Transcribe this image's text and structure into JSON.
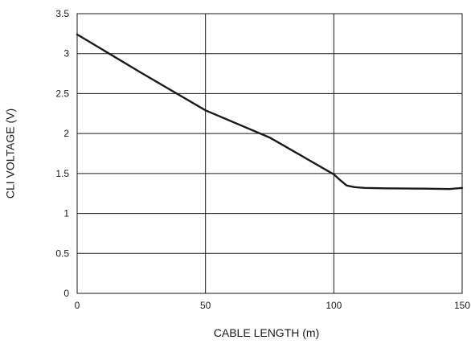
{
  "chart_data": {
    "type": "line",
    "title": "",
    "xlabel": "CABLE LENGTH (m)",
    "ylabel": "CLI VOLTAGE (V)",
    "xlim": [
      0,
      150
    ],
    "ylim": [
      0,
      3.5
    ],
    "x_ticks": [
      0,
      50,
      100,
      150
    ],
    "y_ticks": [
      0,
      0.5,
      1,
      1.5,
      2,
      2.5,
      3,
      3.5
    ],
    "x_tick_labels": [
      "0",
      "50",
      "100",
      "150"
    ],
    "y_tick_labels": [
      "0",
      "0.5",
      "1",
      "1.5",
      "2",
      "2.5",
      "3",
      "3.5"
    ],
    "x_grid": [
      50,
      100
    ],
    "y_grid": [
      0.5,
      1,
      1.5,
      2,
      2.5,
      3
    ],
    "grid": true,
    "legend": "none",
    "series": [
      {
        "points": [
          [
            0,
            3.24
          ],
          [
            25,
            2.76
          ],
          [
            50,
            2.29
          ],
          [
            75,
            1.95
          ],
          [
            100,
            1.49
          ],
          [
            102,
            1.43
          ],
          [
            105,
            1.35
          ],
          [
            108,
            1.33
          ],
          [
            112,
            1.32
          ],
          [
            120,
            1.315
          ],
          [
            135,
            1.31
          ],
          [
            145,
            1.305
          ],
          [
            150,
            1.32
          ]
        ]
      }
    ]
  }
}
